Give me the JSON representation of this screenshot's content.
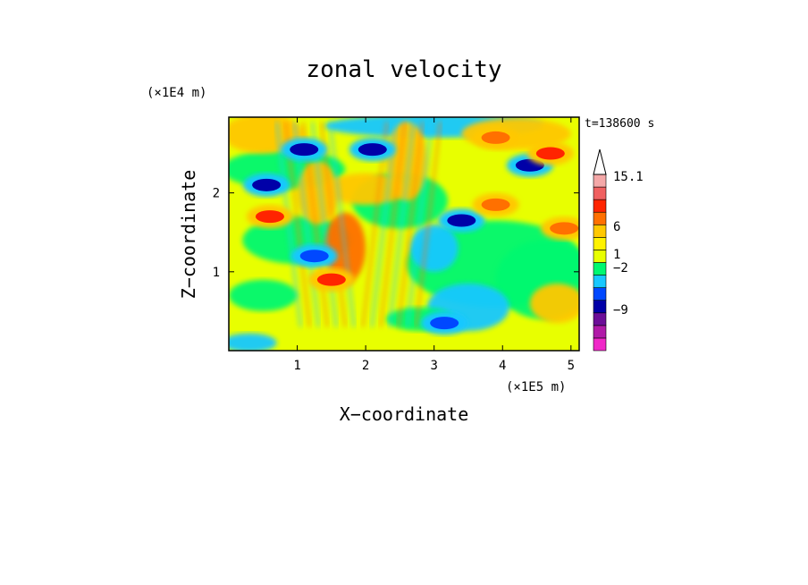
{
  "chart_data": {
    "type": "heatmap",
    "title": "zonal velocity",
    "xlabel": "X−coordinate",
    "ylabel": "Z−coordinate",
    "x_unit": "(×1E5 m)",
    "y_unit": "(×1E4 m)",
    "time_label": "t=138600 s",
    "xlim": [
      0,
      5.12
    ],
    "ylim": [
      0,
      2.96
    ],
    "x_ticks": [
      1,
      2,
      3,
      4,
      5
    ],
    "x_tick_labels": [
      "1",
      "2",
      "3",
      "4",
      "5"
    ],
    "y_ticks": [
      1,
      2
    ],
    "y_tick_labels": [
      "1",
      "2"
    ],
    "colorbar": {
      "levels": [
        {
          "color": "#f027c8"
        },
        {
          "color": "#b01aa8"
        },
        {
          "color": "#6c0e98"
        },
        {
          "color": "#0000a8"
        },
        {
          "color": "#0048ff"
        },
        {
          "color": "#18c8ff"
        },
        {
          "color": "#00f870"
        },
        {
          "color": "#e8ff00"
        },
        {
          "color": "#fff200"
        },
        {
          "color": "#ffc800"
        },
        {
          "color": "#ff7000"
        },
        {
          "color": "#ff2400"
        },
        {
          "color": "#f06060"
        },
        {
          "color": "#f4a8a8"
        }
      ],
      "tick_labels": [
        {
          "label": "15.1",
          "pos": 15.1
        },
        {
          "label": "6",
          "pos": 6
        },
        {
          "label": "1",
          "pos": 1
        },
        {
          "label": "−2",
          "pos": -2
        },
        {
          "label": "−9",
          "pos": -9
        }
      ]
    },
    "field_features": [
      {
        "x": 4.4,
        "z": 2.35,
        "value": -10
      },
      {
        "x": 0.55,
        "z": 2.1,
        "value": -10
      },
      {
        "x": 3.4,
        "z": 1.65,
        "value": -9
      },
      {
        "x": 2.1,
        "z": 2.55,
        "value": -9
      },
      {
        "x": 1.1,
        "z": 2.55,
        "value": -9
      },
      {
        "x": 1.25,
        "z": 1.2,
        "value": -8
      },
      {
        "x": 3.15,
        "z": 0.35,
        "value": -8
      },
      {
        "x": 1.5,
        "z": 0.9,
        "value": 8
      },
      {
        "x": 4.7,
        "z": 2.5,
        "value": 6
      },
      {
        "x": 0.6,
        "z": 1.7,
        "value": 6
      },
      {
        "x": 3.9,
        "z": 1.85,
        "value": 5
      },
      {
        "x": 4.9,
        "z": 1.55,
        "value": 5
      },
      {
        "x": 3.9,
        "z": 2.7,
        "value": 4
      }
    ]
  }
}
